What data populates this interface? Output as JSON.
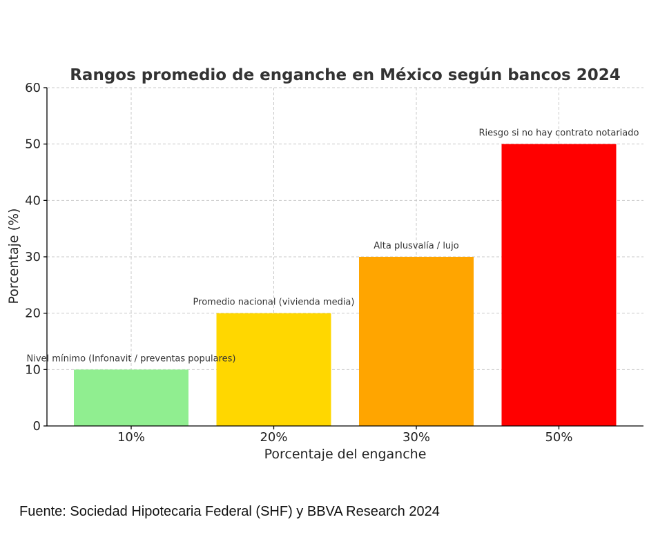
{
  "chart_data": {
    "type": "bar",
    "title": "Rangos promedio de enganche en México según bancos 2024",
    "xlabel": "Porcentaje del enganche",
    "ylabel": "Porcentaje (%)",
    "categories": [
      "10%",
      "20%",
      "30%",
      "50%"
    ],
    "values": [
      10,
      20,
      30,
      50
    ],
    "annotations": [
      "Nivel mínimo (Infonavit / preventas populares)",
      "Promedio nacional (vivienda media)",
      "Alta plusvalía / lujo",
      "Riesgo si no hay contrato notariado"
    ],
    "colors": [
      "#90ee90",
      "#ffd700",
      "#ffa500",
      "#ff0000"
    ],
    "ylim": [
      0,
      60
    ],
    "yticks": [
      0,
      10,
      20,
      30,
      40,
      50,
      60
    ],
    "grid": true
  },
  "source": "Fuente: Sociedad Hipotecaria Federal (SHF) y BBVA Research 2024"
}
